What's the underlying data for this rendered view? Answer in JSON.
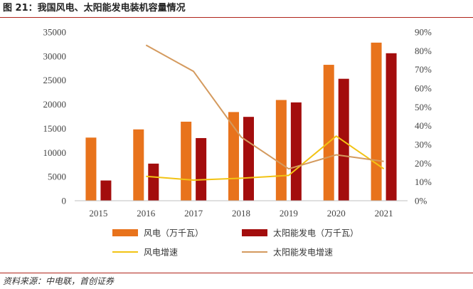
{
  "header": {
    "title": "图 21：我国风电、太阳能发电装机容量情况"
  },
  "footer": {
    "source": "资料来源：中电联，首创证券"
  },
  "chart_data": {
    "type": "bar",
    "categories": [
      "2015",
      "2016",
      "2017",
      "2018",
      "2019",
      "2020",
      "2021"
    ],
    "series": [
      {
        "name": "风电（万千瓦）",
        "type": "bar",
        "axis": "left",
        "color": "#e8731c",
        "values": [
          13100,
          14800,
          16400,
          18400,
          20900,
          28200,
          32800
        ]
      },
      {
        "name": "太阳能发电（万千瓦）",
        "type": "bar",
        "axis": "left",
        "color": "#a30d0d",
        "values": [
          4200,
          7700,
          13000,
          17400,
          20400,
          25300,
          30600
        ]
      },
      {
        "name": "风电增速",
        "type": "line",
        "axis": "right",
        "color": "#f2c314",
        "values": [
          null,
          0.13,
          0.11,
          0.12,
          0.135,
          0.345,
          0.17
        ]
      },
      {
        "name": "太阳能发电增速",
        "type": "line",
        "axis": "right",
        "color": "#d49a5e",
        "values": [
          null,
          0.83,
          0.69,
          0.34,
          0.17,
          0.245,
          0.21
        ]
      }
    ],
    "y_left": {
      "min": 0,
      "max": 35000,
      "step": 5000
    },
    "y_right": {
      "min": 0,
      "max": 0.9,
      "step": 0.1,
      "format": "percent"
    },
    "grid": false,
    "legend_position": "bottom"
  }
}
